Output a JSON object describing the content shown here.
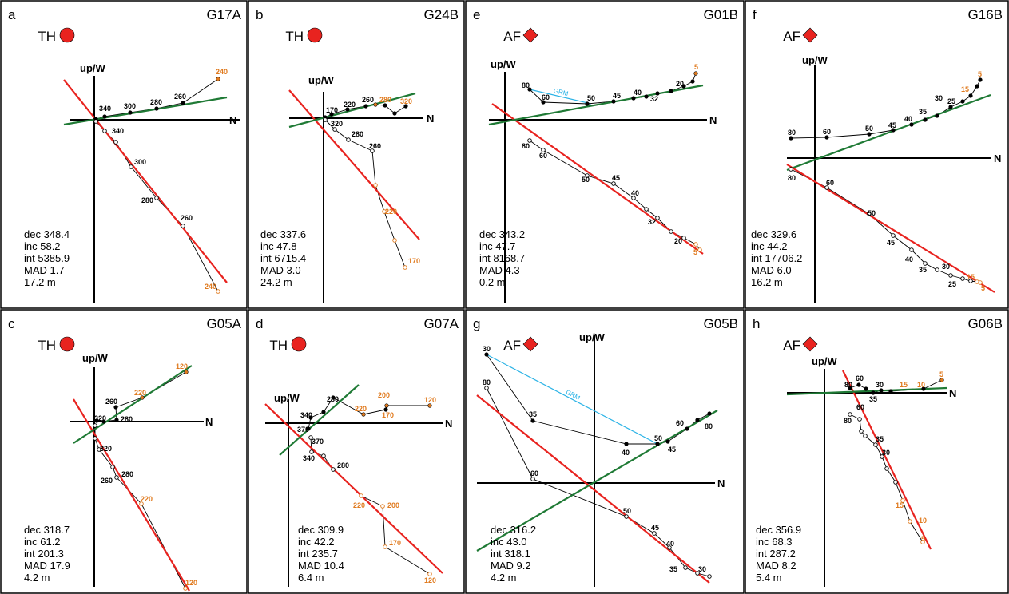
{
  "axis_labels": {
    "vertical": "up/W",
    "horizontal": "N"
  },
  "colors": {
    "fit_red": "#e8231f",
    "fit_green": "#1f7a35",
    "grm": "#2bb3e6",
    "orange_label": "#e07a1e",
    "marker_red": "#e8231f"
  },
  "panels": [
    {
      "letter": "a",
      "method": "TH",
      "marker": "circle",
      "sample": "G17A",
      "stats": [
        "dec 348.4",
        "inc 58.2",
        "int 5385.9",
        "MAD 1.7",
        "17.2 m"
      ]
    },
    {
      "letter": "b",
      "method": "TH",
      "marker": "circle",
      "sample": "G24B",
      "stats": [
        "dec 337.6",
        "inc 47.8",
        "int 6715.4",
        "MAD 3.0",
        "24.2 m"
      ]
    },
    {
      "letter": "e",
      "method": "AF",
      "marker": "diamond",
      "sample": "G01B",
      "stats": [
        "dec 343.2",
        "inc 47.7",
        "int 8168.7",
        "MAD 4.3",
        "0.2 m"
      ]
    },
    {
      "letter": "f",
      "method": "AF",
      "marker": "diamond",
      "sample": "G16B",
      "stats": [
        "dec 329.6",
        "inc 44.2",
        "int 17706.2",
        "MAD 6.0",
        "16.2 m"
      ]
    },
    {
      "letter": "c",
      "method": "TH",
      "marker": "circle",
      "sample": "G05A",
      "stats": [
        "dec 318.7",
        "inc 61.2",
        "int 201.3",
        "MAD 17.9",
        "4.2 m"
      ]
    },
    {
      "letter": "d",
      "method": "TH",
      "marker": "circle",
      "sample": "G07A",
      "stats": [
        "dec 309.9",
        "inc 42.2",
        "int 235.7",
        "MAD 10.4",
        "6.4 m"
      ]
    },
    {
      "letter": "g",
      "method": "AF",
      "marker": "diamond",
      "sample": "G05B",
      "stats": [
        "dec 316.2",
        "inc 43.0",
        "int 318.1",
        "MAD 9.2",
        "4.2 m"
      ]
    },
    {
      "letter": "h",
      "method": "AF",
      "marker": "diamond",
      "sample": "G06B",
      "stats": [
        "dec 356.9",
        "inc 68.3",
        "int 287.2",
        "MAD 8.2",
        "5.4 m"
      ]
    }
  ],
  "step_labels": {
    "a": {
      "h": [
        "240",
        "260",
        "280",
        "300",
        "340"
      ],
      "v": [
        "340",
        "300",
        "280",
        "260",
        "240"
      ]
    },
    "b": {
      "h": [
        "320",
        "280",
        "260",
        "220",
        "170"
      ],
      "v": [
        "320",
        "280",
        "260",
        "220",
        "170"
      ]
    },
    "e": {
      "h": [
        "5",
        "20",
        "32",
        "40",
        "45",
        "50",
        "60",
        "80"
      ],
      "v": [
        "80",
        "60",
        "50",
        "45",
        "40",
        "32",
        "20",
        "5"
      ]
    },
    "f": {
      "h": [
        "5",
        "15",
        "25",
        "30",
        "35",
        "40",
        "45",
        "50",
        "60",
        "80"
      ],
      "v": [
        "80",
        "60",
        "50",
        "45",
        "40",
        "35",
        "30",
        "25",
        "15",
        "5"
      ]
    },
    "c": {
      "h": [
        "120",
        "220",
        "260",
        "280",
        "320"
      ],
      "v": [
        "320",
        "280",
        "260",
        "220",
        "120"
      ]
    },
    "d": {
      "h": [
        "120",
        "200",
        "170",
        "220",
        "280",
        "340",
        "370"
      ],
      "v": [
        "370",
        "340",
        "280",
        "220",
        "200",
        "170",
        "120"
      ]
    },
    "g": {
      "h": [
        "80",
        "60",
        "50",
        "45",
        "40",
        "35",
        "30"
      ],
      "v": [
        "80",
        "60",
        "50",
        "45",
        "40",
        "35",
        "30"
      ]
    },
    "h": {
      "h": [
        "5",
        "10",
        "15",
        "30",
        "35",
        "60",
        "80"
      ],
      "v": [
        "80",
        "60",
        "35",
        "30",
        "15",
        "10",
        "5"
      ]
    }
  },
  "grm_label": "GRM"
}
